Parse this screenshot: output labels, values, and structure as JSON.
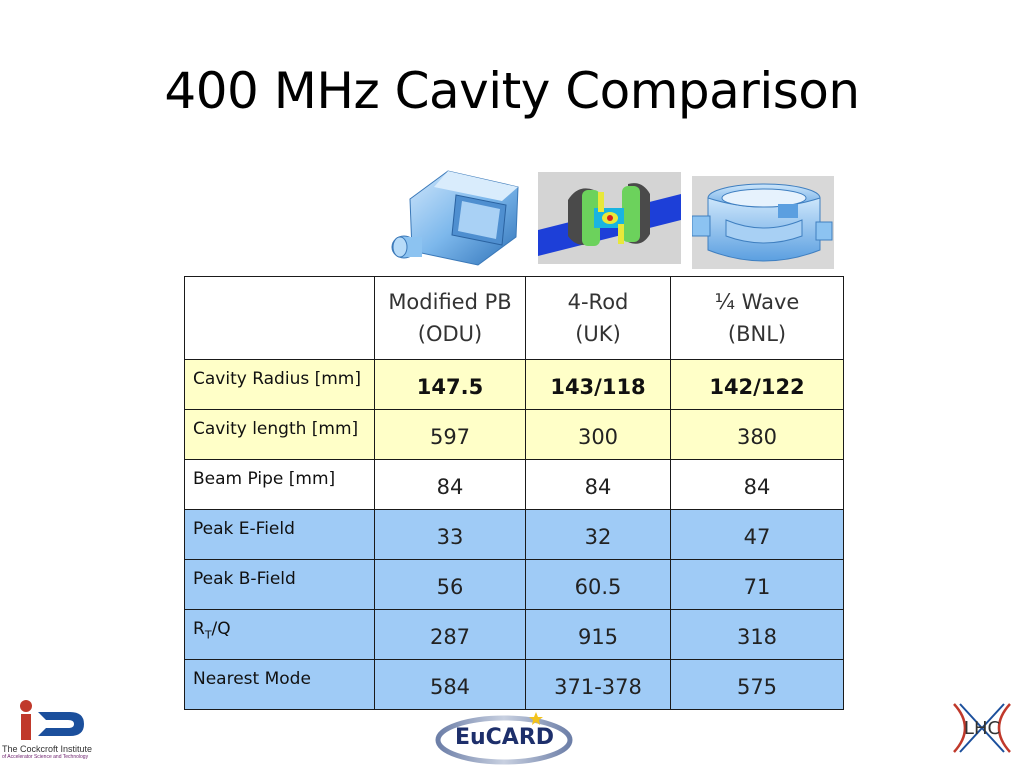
{
  "slide": {
    "title": "400 MHz Cavity Comparison"
  },
  "table": {
    "columns": [
      {
        "line1": "Modified PB",
        "line2": "(ODU)"
      },
      {
        "line1": "4-Rod",
        "line2": "(UK)"
      },
      {
        "line1": "¼ Wave",
        "line2": "(BNL)"
      }
    ],
    "rows": [
      {
        "label": "Cavity Radius [mm]",
        "values": [
          "147.5",
          "143/118",
          "142/122"
        ],
        "style": "yellow"
      },
      {
        "label": "Cavity length [mm]",
        "values": [
          "597",
          "300",
          "380"
        ],
        "style": "yellow"
      },
      {
        "label": "Beam Pipe [mm]",
        "values": [
          "84",
          "84",
          "84"
        ],
        "style": "white"
      },
      {
        "label": "Peak E-Field",
        "values": [
          "33",
          "32",
          "47"
        ],
        "style": "blue"
      },
      {
        "label": "Peak B-Field",
        "values": [
          "56",
          "60.5",
          "71"
        ],
        "style": "blue"
      },
      {
        "label_main": "R",
        "label_sub": "T",
        "label_tail": "/Q",
        "values": [
          "287",
          "915",
          "318"
        ],
        "style": "blue"
      },
      {
        "label": "Nearest Mode",
        "values": [
          "584",
          "371-378",
          "575"
        ],
        "style": "blue"
      }
    ]
  },
  "logos": {
    "cockcroft_line1": "The Cockcroft Institute",
    "cockcroft_line2": "of Accelerator Science and Technology",
    "eucard": "EuCARD",
    "lhc": "LHC"
  },
  "colors": {
    "yellow_row": "#ffffc8",
    "blue_row": "#9fcbf6",
    "cockcroft_blue": "#1b4f9c",
    "cockcroft_red": "#c0392b",
    "eucard_navy": "#1d2f6b"
  }
}
